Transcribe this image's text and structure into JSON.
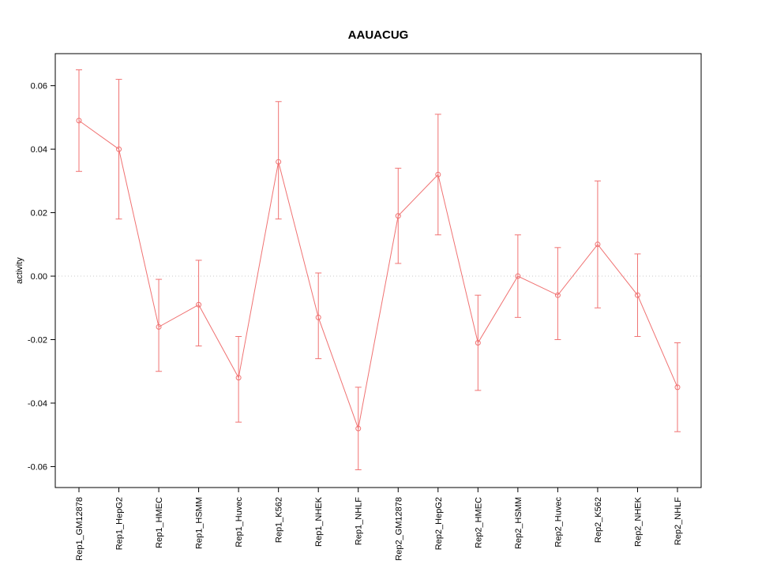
{
  "title": "AAUACUG",
  "chart_data": {
    "type": "scatter",
    "title": "AAUACUG",
    "xlabel": "",
    "ylabel": "activity",
    "grid": "dotted line at y=0 only",
    "legend": "none",
    "line_color": "#f07272",
    "axis_color": "#000000",
    "zero_line_color": "#c8c8c8",
    "ylim": [
      -0.0666,
      0.0701
    ],
    "yticks": [
      -0.06,
      -0.04,
      -0.02,
      0,
      0.02,
      0.04,
      0.06
    ],
    "categories": [
      "Rep1_GM12878",
      "Rep1_HepG2",
      "Rep1_HMEC",
      "Rep1_HSMM",
      "Rep1_Huvec",
      "Rep1_K562",
      "Rep1_NHEK",
      "Rep1_NHLF",
      "Rep2_GM12878",
      "Rep2_HepG2",
      "Rep2_HMEC",
      "Rep2_HSMM",
      "Rep2_Huvec",
      "Rep2_K562",
      "Rep2_NHEK",
      "Rep2_NHLF"
    ],
    "values": [
      0.049,
      0.04,
      -0.016,
      -0.009,
      -0.032,
      0.036,
      -0.013,
      -0.048,
      0.019,
      0.032,
      -0.021,
      0.0,
      -0.006,
      0.01,
      -0.006,
      -0.035
    ],
    "error_low": [
      0.033,
      0.018,
      -0.03,
      -0.022,
      -0.046,
      0.018,
      -0.026,
      -0.061,
      0.004,
      0.013,
      -0.036,
      -0.013,
      -0.02,
      -0.01,
      -0.019,
      -0.049
    ],
    "error_high": [
      0.065,
      0.062,
      -0.001,
      0.005,
      -0.019,
      0.055,
      0.001,
      -0.035,
      0.034,
      0.051,
      -0.006,
      0.013,
      0.009,
      0.03,
      0.007,
      -0.021
    ]
  }
}
